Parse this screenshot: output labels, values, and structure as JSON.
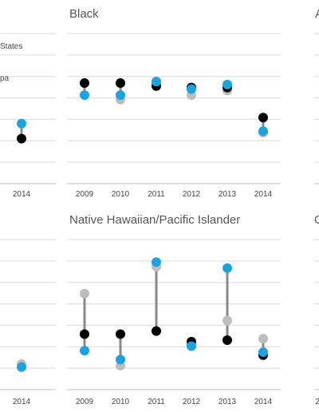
{
  "colors": {
    "black_series": "#000000",
    "blue_series": "#1aa3e0",
    "gray_series": "#bdbdbd",
    "range_line": "#8a8a8a",
    "grid": "#d9d9d9",
    "title": "#555555"
  },
  "legend": {
    "entries": [
      "States",
      "pa"
    ]
  },
  "chart_data": [
    {
      "type": "scatter",
      "panel": "top-left",
      "title": "",
      "categories": [
        "2014"
      ],
      "ylim": [
        0,
        100
      ],
      "series": [
        {
          "key": "black",
          "values": [
            30
          ]
        },
        {
          "key": "blue",
          "values": [
            40
          ]
        }
      ]
    },
    {
      "type": "scatter",
      "panel": "top-middle",
      "title": "Black",
      "categories": [
        "2009",
        "2010",
        "2011",
        "2012",
        "2013",
        "2014"
      ],
      "ylim": [
        0,
        100
      ],
      "series": [
        {
          "key": "black",
          "values": [
            67,
            67,
            65,
            64,
            64,
            44
          ]
        },
        {
          "key": "gray",
          "values": [
            59,
            56,
            66,
            59,
            62,
            34
          ]
        },
        {
          "key": "blue",
          "values": [
            59,
            59,
            68,
            63,
            66,
            35
          ]
        }
      ]
    },
    {
      "type": "scatter",
      "panel": "top-right",
      "title": "A",
      "categories": [],
      "series": []
    },
    {
      "type": "scatter",
      "panel": "bottom-left",
      "title": "",
      "categories": [
        "2014"
      ],
      "ylim": [
        0,
        100
      ],
      "series": [
        {
          "key": "gray",
          "values": [
            17
          ]
        },
        {
          "key": "blue",
          "values": [
            15
          ]
        }
      ]
    },
    {
      "type": "scatter",
      "panel": "bottom-middle",
      "title": "Native Hawaiian/Pacific Islander",
      "categories": [
        "2009",
        "2010",
        "2011",
        "2012",
        "2013",
        "2014"
      ],
      "ylim": [
        0,
        100
      ],
      "series": [
        {
          "key": "black",
          "values": [
            37,
            37,
            39,
            32,
            33,
            23
          ]
        },
        {
          "key": "gray",
          "values": [
            64,
            16,
            82,
            30,
            46,
            34
          ]
        },
        {
          "key": "blue",
          "values": [
            26,
            20,
            85,
            29,
            81,
            25
          ]
        }
      ]
    },
    {
      "type": "scatter",
      "panel": "bottom-right",
      "title": "O",
      "categories": [
        "2"
      ],
      "series": []
    }
  ]
}
